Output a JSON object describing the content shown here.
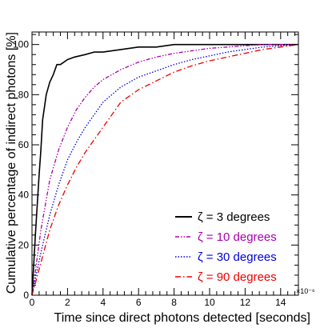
{
  "chart_data": {
    "type": "line",
    "xlabel": "Time since direct photons detected [seconds]",
    "ylabel": "Cumulative percentage of indirect photons [%]",
    "x_multiplier": "×10⁻⁶",
    "xlim": [
      0,
      15
    ],
    "ylim": [
      0,
      105
    ],
    "x_ticks": [
      0,
      2,
      4,
      6,
      8,
      10,
      12,
      14
    ],
    "y_ticks": [
      0,
      20,
      40,
      60,
      80,
      100
    ],
    "grid": false,
    "legend_position": "bottom-right",
    "series": [
      {
        "name": "ζ = 3 degrees",
        "color": "#000000",
        "style": "solid",
        "x": [
          0,
          0.2,
          0.4,
          0.5,
          0.6,
          0.8,
          1.0,
          1.2,
          1.4,
          1.6,
          2.0,
          2.4,
          3.0,
          3.5,
          4.0,
          5.0,
          6.0,
          7.0,
          8.0,
          9.0,
          10.0,
          12.0,
          15.0
        ],
        "y": [
          0,
          25,
          48,
          58,
          70,
          80,
          85,
          88,
          92,
          92,
          94,
          95,
          96,
          97,
          97,
          98,
          99,
          99,
          100,
          100,
          100,
          100,
          100
        ]
      },
      {
        "name": "ζ = 10 degrees",
        "color": "#aa00aa",
        "style": "dash-dot-dot",
        "x": [
          0,
          0.2,
          0.5,
          1.0,
          1.5,
          2.0,
          2.5,
          3.0,
          3.5,
          4.0,
          5.0,
          6.0,
          7.0,
          8.0,
          9.0,
          10.0,
          11.0,
          12.0,
          13.0,
          14.0,
          15.0
        ],
        "y": [
          0,
          10,
          26,
          46,
          58,
          67,
          74,
          79,
          83,
          86,
          90,
          93,
          95,
          96.5,
          97.5,
          98.5,
          99,
          99.5,
          100,
          100,
          100
        ]
      },
      {
        "name": "ζ = 30 degrees",
        "color": "#0000dd",
        "style": "dotted",
        "x": [
          0,
          0.2,
          0.5,
          1.0,
          1.5,
          2.0,
          2.5,
          3.0,
          3.5,
          4.0,
          4.5,
          5.0,
          6.0,
          7.0,
          8.0,
          9.0,
          10.0,
          11.0,
          12.0,
          13.0,
          14.0,
          15.0
        ],
        "y": [
          0,
          7,
          17,
          32,
          44,
          54,
          61,
          67,
          72,
          77,
          80,
          83,
          87,
          89.5,
          92,
          94,
          95.5,
          97,
          98,
          99,
          99.5,
          100
        ]
      },
      {
        "name": "ζ = 90 degrees",
        "color": "#ee0000",
        "style": "dash-dot",
        "x": [
          0,
          0.2,
          0.5,
          1.0,
          1.5,
          2.0,
          2.5,
          3.0,
          3.5,
          4.0,
          4.5,
          5.0,
          6.0,
          7.0,
          8.0,
          9.0,
          10.0,
          11.0,
          12.0,
          13.0,
          14.0,
          15.0
        ],
        "y": [
          0,
          5,
          13,
          26,
          36,
          44,
          51,
          57,
          62,
          67,
          72,
          77,
          82,
          85.5,
          89,
          91.5,
          93.5,
          95,
          96.5,
          98,
          99,
          100
        ]
      }
    ]
  }
}
